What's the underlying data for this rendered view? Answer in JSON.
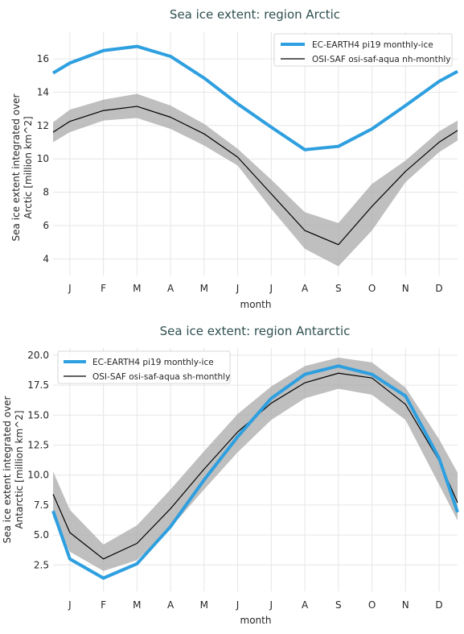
{
  "chart_data": [
    {
      "type": "line",
      "title": "Sea ice extent: region Arctic",
      "xlabel": "month",
      "ylabel": "Sea ice extent integrated over Arctic [million km^2]",
      "ylabel_lines": [
        "Sea ice extent integrated over",
        "Arctic [million km^2]"
      ],
      "categories": [
        "J",
        "F",
        "M",
        "A",
        "M",
        "J",
        "J",
        "A",
        "S",
        "O",
        "N",
        "D"
      ],
      "xlim": [
        0.5,
        12.55
      ],
      "ylim": [
        3.0,
        17.6
      ],
      "yticks": [
        4,
        6,
        8,
        10,
        12,
        14,
        16
      ],
      "ytick_labels": [
        "4",
        "6",
        "8",
        "10",
        "12",
        "14",
        "16"
      ],
      "grid": true,
      "legend_position": "top-right",
      "series": [
        {
          "name": "EC-EARTH4 pi19 monthly-ice",
          "color": "#2e9fdf",
          "x": [
            0.5,
            1,
            2,
            3,
            4,
            5,
            6,
            7,
            8,
            9,
            10,
            11,
            12,
            12.55
          ],
          "values": [
            15.15,
            15.75,
            16.5,
            16.75,
            16.15,
            14.85,
            13.3,
            11.9,
            10.55,
            10.75,
            11.8,
            13.2,
            14.65,
            15.25
          ]
        },
        {
          "name": "OSI-SAF osi-saf-aqua nh-monthly",
          "color": "#000000",
          "x": [
            0.5,
            1,
            2,
            3,
            4,
            5,
            6,
            7,
            8,
            9,
            10,
            11,
            12,
            12.55
          ],
          "values": [
            11.6,
            12.25,
            12.9,
            13.15,
            12.5,
            11.5,
            10.1,
            7.9,
            5.7,
            4.85,
            7.15,
            9.25,
            11.0,
            11.7
          ],
          "band_low": [
            11.0,
            11.6,
            12.3,
            12.45,
            11.8,
            10.8,
            9.6,
            7.0,
            4.6,
            3.55,
            5.7,
            8.6,
            10.4,
            11.1
          ],
          "band_high": [
            12.2,
            12.95,
            13.55,
            13.9,
            13.2,
            12.1,
            10.6,
            8.75,
            6.8,
            6.15,
            8.5,
            9.9,
            11.65,
            12.3
          ]
        }
      ]
    },
    {
      "type": "line",
      "title": "Sea ice extent: region Antarctic",
      "xlabel": "month",
      "ylabel": "Sea ice extent integrated over Antarctic [million km^2]",
      "ylabel_lines": [
        "Sea ice extent integrated over",
        "Antarctic [million km^2]"
      ],
      "categories": [
        "J",
        "F",
        "M",
        "A",
        "M",
        "J",
        "J",
        "A",
        "S",
        "O",
        "N",
        "D"
      ],
      "xlim": [
        0.5,
        12.55
      ],
      "ylim": [
        0.3,
        20.6
      ],
      "yticks": [
        2.5,
        5.0,
        7.5,
        10.0,
        12.5,
        15.0,
        17.5,
        20.0
      ],
      "ytick_labels": [
        "2.5",
        "5.0",
        "7.5",
        "10.0",
        "12.5",
        "15.0",
        "17.5",
        "20.0"
      ],
      "grid": true,
      "legend_position": "top-left",
      "series": [
        {
          "name": "EC-EARTH4 pi19 monthly-ice",
          "color": "#2e9fdf",
          "x": [
            0.5,
            1,
            2,
            3,
            4,
            5,
            6,
            7,
            8,
            9,
            10,
            11,
            12,
            12.55
          ],
          "values": [
            7.0,
            3.0,
            1.4,
            2.6,
            5.7,
            9.6,
            13.2,
            16.4,
            18.4,
            19.1,
            18.4,
            16.6,
            11.4,
            6.9
          ]
        },
        {
          "name": "OSI-SAF osi-saf-aqua sh-monthly",
          "color": "#000000",
          "x": [
            0.5,
            1,
            2,
            3,
            4,
            5,
            6,
            7,
            8,
            9,
            10,
            11,
            12,
            12.55
          ],
          "values": [
            8.4,
            5.2,
            3.0,
            4.3,
            7.2,
            10.5,
            13.6,
            16.0,
            17.7,
            18.5,
            18.1,
            15.9,
            11.2,
            7.7
          ],
          "band_low": [
            6.5,
            3.6,
            2.0,
            2.9,
            5.6,
            8.8,
            11.9,
            14.6,
            16.4,
            17.2,
            16.7,
            14.6,
            9.2,
            6.2
          ],
          "band_high": [
            10.3,
            7.1,
            4.2,
            5.8,
            8.8,
            12.0,
            15.1,
            17.4,
            19.1,
            19.8,
            19.4,
            17.3,
            13.0,
            10.2
          ]
        }
      ]
    }
  ]
}
